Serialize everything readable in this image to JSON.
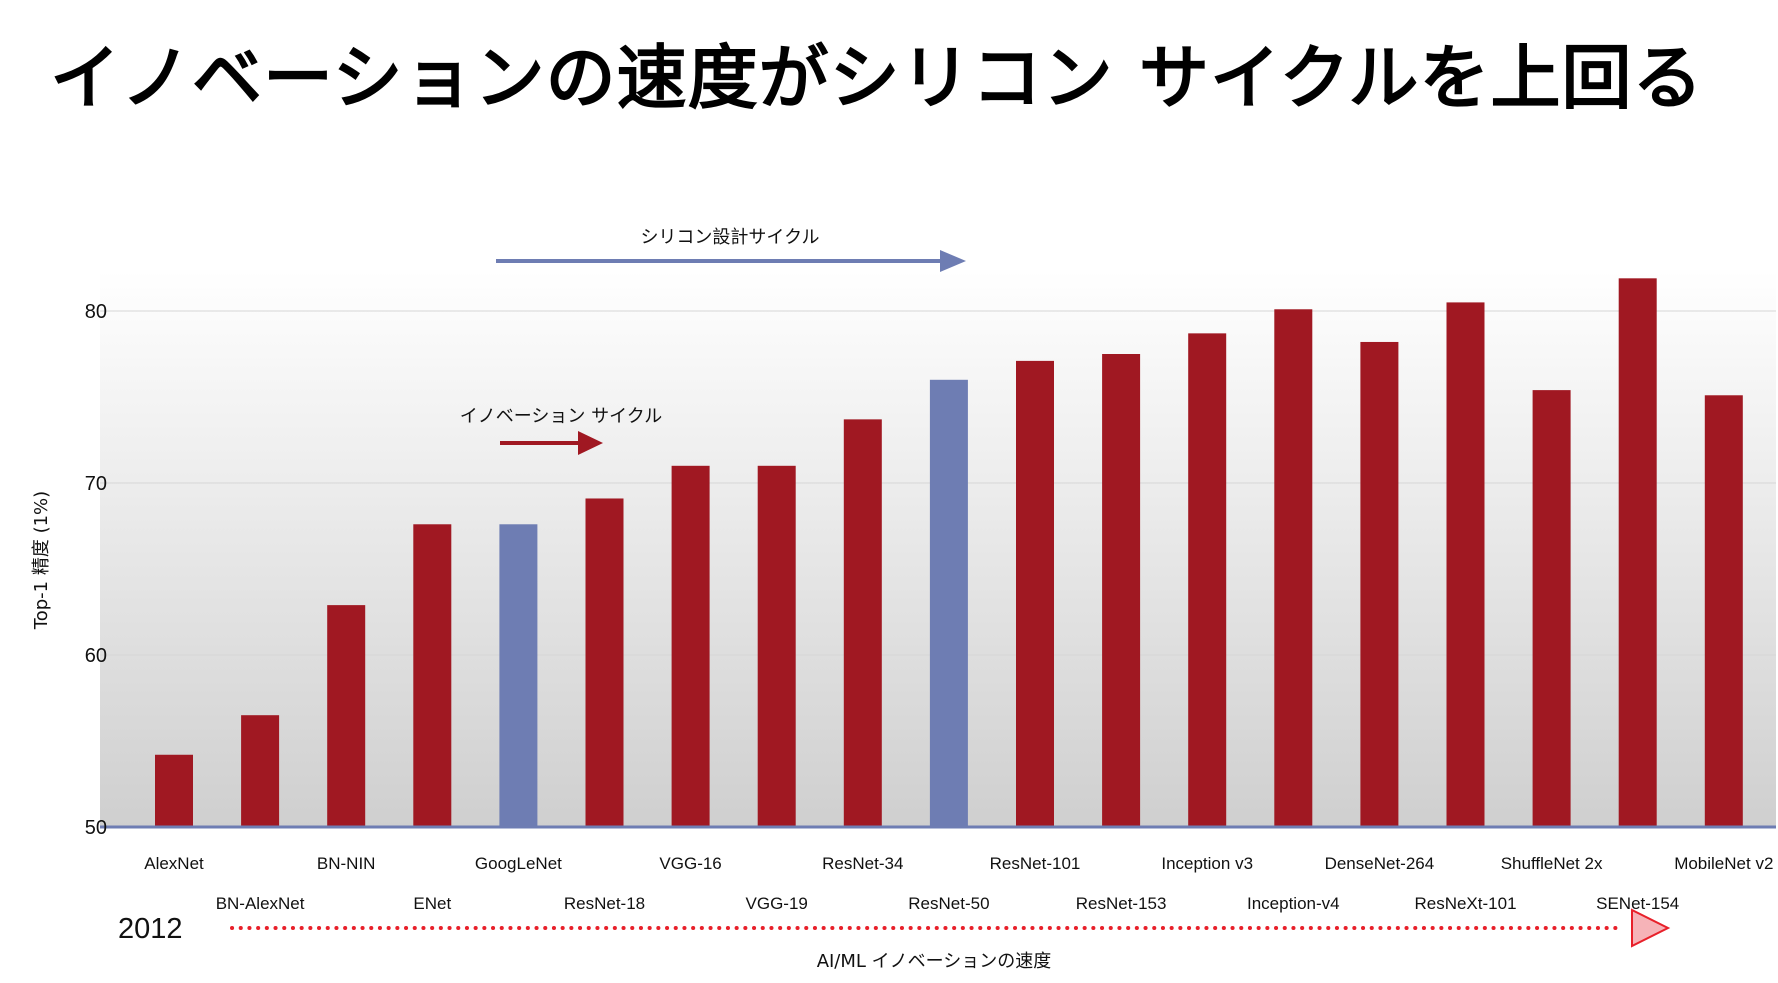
{
  "title": "イノベーションの速度がシリコン サイクルを上回る",
  "colors": {
    "bar_default": "#a01822",
    "bar_highlight": "#6e7db3",
    "axis": "#6e7db3",
    "gridline": "#d6d6d6",
    "bg_top": "#ffffff",
    "bg_bottom": "#cfcfcf",
    "timeline_arrow": "#e8202a",
    "timeline_head_fill": "#f6b3b8"
  },
  "annotations": {
    "silicon_cycle": "シリコン設計サイクル",
    "innovation_cycle": "イノベーション サイクル",
    "start_year": "2012",
    "timeline_label": "AI/ML イノベーションの速度"
  },
  "chart_data": {
    "type": "bar",
    "title": "イノベーションの速度がシリコン サイクルを上回る",
    "xlabel": "",
    "ylabel": "Top-1 精度 (1%)",
    "ylim": [
      50,
      82
    ],
    "yticks": [
      50,
      60,
      70,
      80
    ],
    "grid": true,
    "legend": "none",
    "categories": [
      "AlexNet",
      "BN-AlexNet",
      "BN-NIN",
      "ENet",
      "GoogLeNet",
      "ResNet-18",
      "VGG-16",
      "VGG-19",
      "ResNet-34",
      "ResNet-50",
      "ResNet-101",
      "ResNet-153",
      "Inception v3",
      "Inception-v4",
      "DenseNet-264",
      "ResNeXt-101",
      "ShuffleNet 2x",
      "SENet-154",
      "MobileNet v2"
    ],
    "values": [
      54.2,
      56.5,
      62.9,
      67.6,
      67.6,
      69.1,
      71.0,
      71.0,
      73.7,
      76.0,
      77.1,
      77.5,
      78.7,
      80.1,
      78.2,
      80.5,
      75.4,
      81.9,
      75.1
    ],
    "highlight": [
      "GoogLeNet",
      "ResNet-50"
    ]
  }
}
